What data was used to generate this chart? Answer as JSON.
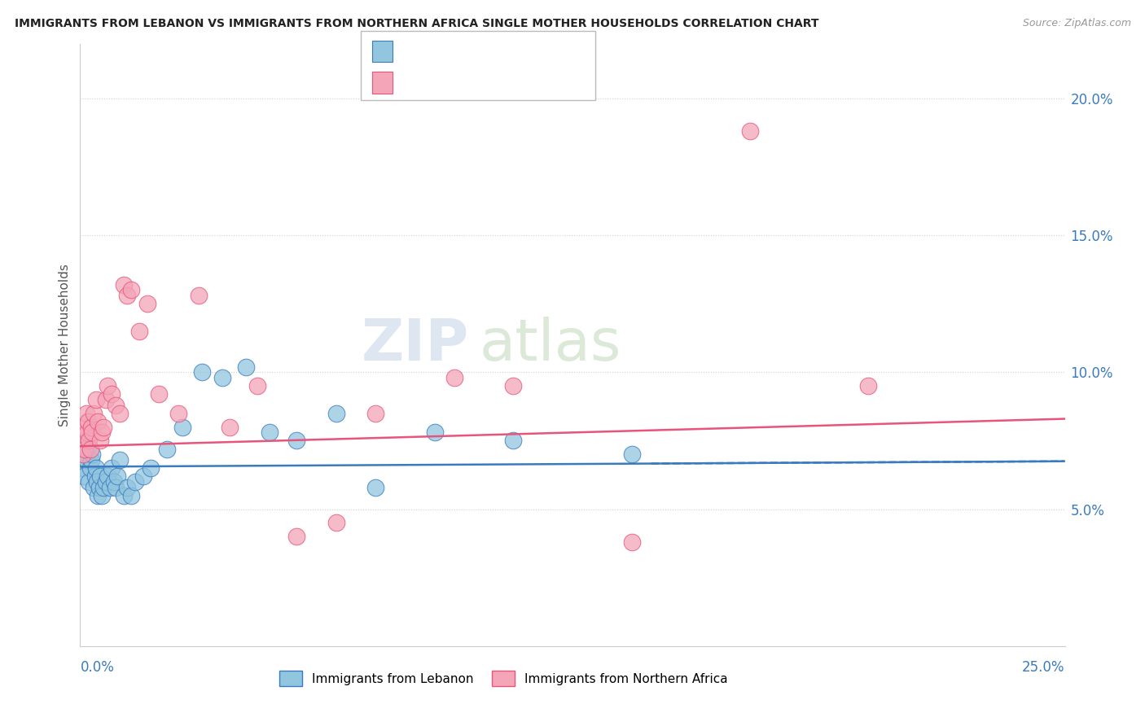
{
  "title": "IMMIGRANTS FROM LEBANON VS IMMIGRANTS FROM NORTHERN AFRICA SINGLE MOTHER HOUSEHOLDS CORRELATION CHART",
  "source": "Source: ZipAtlas.com",
  "ylabel": "Single Mother Households",
  "color_blue": "#92c5de",
  "color_pink": "#f4a5b8",
  "color_blue_line": "#3a7bbf",
  "color_pink_line": "#e8547a",
  "xlim": [
    0.0,
    25.0
  ],
  "ylim": [
    0.0,
    22.0
  ],
  "yticks": [
    5.0,
    10.0,
    15.0,
    20.0
  ],
  "ytick_labels": [
    "5.0%",
    "10.0%",
    "15.0%",
    "20.0%"
  ],
  "watermark_zip": "ZIP",
  "watermark_atlas": "atlas",
  "blue_x": [
    0.05,
    0.08,
    0.1,
    0.12,
    0.15,
    0.18,
    0.2,
    0.22,
    0.25,
    0.28,
    0.3,
    0.35,
    0.38,
    0.4,
    0.42,
    0.45,
    0.48,
    0.5,
    0.55,
    0.6,
    0.65,
    0.7,
    0.75,
    0.8,
    0.85,
    0.9,
    0.95,
    1.0,
    1.1,
    1.2,
    1.3,
    1.4,
    1.6,
    1.8,
    2.2,
    2.6,
    3.1,
    3.6,
    4.2,
    4.8,
    5.5,
    6.5,
    7.5,
    9.0,
    11.0,
    14.0
  ],
  "blue_y": [
    6.8,
    6.5,
    6.2,
    7.0,
    6.8,
    7.2,
    7.5,
    6.0,
    6.5,
    6.8,
    7.0,
    5.8,
    6.2,
    6.5,
    6.0,
    5.5,
    5.8,
    6.2,
    5.5,
    5.8,
    6.0,
    6.2,
    5.8,
    6.5,
    6.0,
    5.8,
    6.2,
    6.8,
    5.5,
    5.8,
    5.5,
    6.0,
    6.2,
    6.5,
    7.2,
    8.0,
    10.0,
    9.8,
    10.2,
    7.8,
    7.5,
    8.5,
    5.8,
    7.8,
    7.5,
    7.0
  ],
  "pink_x": [
    0.05,
    0.08,
    0.1,
    0.12,
    0.15,
    0.18,
    0.2,
    0.22,
    0.25,
    0.28,
    0.3,
    0.35,
    0.4,
    0.45,
    0.5,
    0.55,
    0.6,
    0.65,
    0.7,
    0.8,
    0.9,
    1.0,
    1.1,
    1.2,
    1.3,
    1.5,
    1.7,
    2.0,
    2.5,
    3.0,
    3.8,
    4.5,
    5.5,
    6.5,
    7.5,
    9.5,
    11.0,
    14.0,
    17.0,
    20.0
  ],
  "pink_y": [
    7.5,
    7.0,
    8.0,
    7.2,
    8.5,
    7.8,
    8.2,
    7.5,
    7.2,
    8.0,
    7.8,
    8.5,
    9.0,
    8.2,
    7.5,
    7.8,
    8.0,
    9.0,
    9.5,
    9.2,
    8.8,
    8.5,
    13.2,
    12.8,
    13.0,
    11.5,
    12.5,
    9.2,
    8.5,
    12.8,
    8.0,
    9.5,
    4.0,
    4.5,
    8.5,
    9.8,
    9.5,
    3.8,
    18.8,
    9.5
  ]
}
